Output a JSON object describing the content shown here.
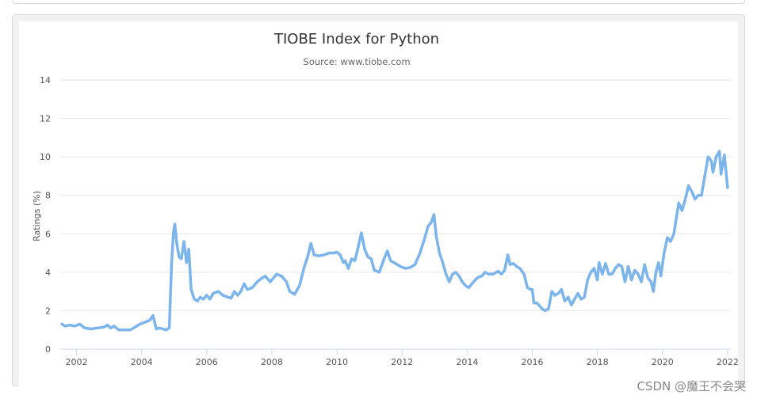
{
  "watermark": "CSDN @魔王不会哭",
  "chart_data": {
    "type": "line",
    "title": "TIOBE Index for Python",
    "subtitle": "Source: www.tiobe.com",
    "xlabel": "",
    "ylabel": "Ratings (%)",
    "xlim": [
      2001.5,
      2022.1
    ],
    "ylim": [
      0,
      14
    ],
    "xticks": [
      "2002",
      "2004",
      "2006",
      "2008",
      "2010",
      "2012",
      "2014",
      "2016",
      "2018",
      "2020",
      "2022"
    ],
    "yticks": [
      "0",
      "2",
      "4",
      "6",
      "8",
      "10",
      "12",
      "14"
    ],
    "grid": true,
    "legend": "none",
    "line_color": "#7cb5ec",
    "series": [
      {
        "points": [
          [
            2001.55,
            1.3
          ],
          [
            2001.65,
            1.2
          ],
          [
            2001.8,
            1.25
          ],
          [
            2001.95,
            1.2
          ],
          [
            2002.1,
            1.3
          ],
          [
            2002.25,
            1.1
          ],
          [
            2002.45,
            1.05
          ],
          [
            2002.65,
            1.1
          ],
          [
            2002.85,
            1.15
          ],
          [
            2002.95,
            1.25
          ],
          [
            2003.05,
            1.1
          ],
          [
            2003.15,
            1.2
          ],
          [
            2003.3,
            1.0
          ],
          [
            2003.5,
            1.0
          ],
          [
            2003.65,
            1.0
          ],
          [
            2003.8,
            1.15
          ],
          [
            2003.95,
            1.3
          ],
          [
            2004.1,
            1.4
          ],
          [
            2004.25,
            1.5
          ],
          [
            2004.35,
            1.75
          ],
          [
            2004.45,
            1.05
          ],
          [
            2004.55,
            1.1
          ],
          [
            2004.65,
            1.05
          ],
          [
            2004.75,
            1.0
          ],
          [
            2004.85,
            1.1
          ],
          [
            2004.92,
            4.5
          ],
          [
            2004.98,
            6.1
          ],
          [
            2005.02,
            6.5
          ],
          [
            2005.08,
            5.5
          ],
          [
            2005.15,
            4.8
          ],
          [
            2005.22,
            4.7
          ],
          [
            2005.3,
            5.6
          ],
          [
            2005.38,
            4.5
          ],
          [
            2005.45,
            5.2
          ],
          [
            2005.52,
            3.1
          ],
          [
            2005.62,
            2.6
          ],
          [
            2005.72,
            2.5
          ],
          [
            2005.8,
            2.7
          ],
          [
            2005.9,
            2.6
          ],
          [
            2006.0,
            2.8
          ],
          [
            2006.1,
            2.6
          ],
          [
            2006.2,
            2.9
          ],
          [
            2006.35,
            3.0
          ],
          [
            2006.5,
            2.8
          ],
          [
            2006.65,
            2.7
          ],
          [
            2006.75,
            2.65
          ],
          [
            2006.85,
            3.0
          ],
          [
            2006.95,
            2.8
          ],
          [
            2007.05,
            3.0
          ],
          [
            2007.15,
            3.4
          ],
          [
            2007.25,
            3.1
          ],
          [
            2007.4,
            3.2
          ],
          [
            2007.55,
            3.5
          ],
          [
            2007.7,
            3.7
          ],
          [
            2007.8,
            3.8
          ],
          [
            2007.95,
            3.5
          ],
          [
            2008.05,
            3.7
          ],
          [
            2008.15,
            3.9
          ],
          [
            2008.3,
            3.8
          ],
          [
            2008.45,
            3.5
          ],
          [
            2008.55,
            3.0
          ],
          [
            2008.7,
            2.85
          ],
          [
            2008.85,
            3.3
          ],
          [
            2009.0,
            4.3
          ],
          [
            2009.1,
            4.8
          ],
          [
            2009.2,
            5.5
          ],
          [
            2009.3,
            4.9
          ],
          [
            2009.45,
            4.85
          ],
          [
            2009.6,
            4.9
          ],
          [
            2009.75,
            5.0
          ],
          [
            2009.9,
            5.0
          ],
          [
            2010.0,
            5.05
          ],
          [
            2010.1,
            4.9
          ],
          [
            2010.2,
            4.5
          ],
          [
            2010.25,
            4.6
          ],
          [
            2010.35,
            4.2
          ],
          [
            2010.45,
            4.7
          ],
          [
            2010.55,
            4.6
          ],
          [
            2010.65,
            5.3
          ],
          [
            2010.75,
            6.05
          ],
          [
            2010.85,
            5.2
          ],
          [
            2010.95,
            4.8
          ],
          [
            2011.05,
            4.7
          ],
          [
            2011.15,
            4.1
          ],
          [
            2011.3,
            4.0
          ],
          [
            2011.45,
            4.7
          ],
          [
            2011.55,
            5.1
          ],
          [
            2011.65,
            4.6
          ],
          [
            2011.8,
            4.45
          ],
          [
            2011.95,
            4.3
          ],
          [
            2012.1,
            4.2
          ],
          [
            2012.25,
            4.25
          ],
          [
            2012.4,
            4.4
          ],
          [
            2012.55,
            5.0
          ],
          [
            2012.7,
            5.8
          ],
          [
            2012.8,
            6.4
          ],
          [
            2012.9,
            6.6
          ],
          [
            2012.98,
            7.0
          ],
          [
            2013.05,
            5.9
          ],
          [
            2013.15,
            5.0
          ],
          [
            2013.25,
            4.5
          ],
          [
            2013.35,
            3.9
          ],
          [
            2013.45,
            3.5
          ],
          [
            2013.55,
            3.9
          ],
          [
            2013.65,
            4.0
          ],
          [
            2013.75,
            3.8
          ],
          [
            2013.85,
            3.5
          ],
          [
            2013.95,
            3.3
          ],
          [
            2014.05,
            3.2
          ],
          [
            2014.15,
            3.4
          ],
          [
            2014.25,
            3.6
          ],
          [
            2014.35,
            3.75
          ],
          [
            2014.45,
            3.8
          ],
          [
            2014.55,
            4.0
          ],
          [
            2014.65,
            3.9
          ],
          [
            2014.8,
            3.9
          ],
          [
            2014.95,
            4.05
          ],
          [
            2015.05,
            3.9
          ],
          [
            2015.15,
            4.1
          ],
          [
            2015.25,
            4.9
          ],
          [
            2015.32,
            4.4
          ],
          [
            2015.42,
            4.45
          ],
          [
            2015.52,
            4.3
          ],
          [
            2015.62,
            4.2
          ],
          [
            2015.75,
            3.9
          ],
          [
            2015.85,
            3.2
          ],
          [
            2015.95,
            3.1
          ],
          [
            2016.0,
            3.1
          ],
          [
            2016.05,
            2.4
          ],
          [
            2016.15,
            2.4
          ],
          [
            2016.3,
            2.1
          ],
          [
            2016.4,
            2.0
          ],
          [
            2016.5,
            2.1
          ],
          [
            2016.6,
            3.0
          ],
          [
            2016.7,
            2.8
          ],
          [
            2016.8,
            2.9
          ],
          [
            2016.9,
            3.1
          ],
          [
            2017.0,
            2.5
          ],
          [
            2017.1,
            2.7
          ],
          [
            2017.2,
            2.3
          ],
          [
            2017.3,
            2.6
          ],
          [
            2017.4,
            2.9
          ],
          [
            2017.5,
            2.6
          ],
          [
            2017.6,
            2.7
          ],
          [
            2017.7,
            3.6
          ],
          [
            2017.8,
            4.0
          ],
          [
            2017.9,
            4.2
          ],
          [
            2018.0,
            3.6
          ],
          [
            2018.05,
            4.5
          ],
          [
            2018.15,
            3.9
          ],
          [
            2018.25,
            4.45
          ],
          [
            2018.35,
            3.9
          ],
          [
            2018.45,
            3.9
          ],
          [
            2018.55,
            4.2
          ],
          [
            2018.65,
            4.4
          ],
          [
            2018.75,
            4.3
          ],
          [
            2018.85,
            3.5
          ],
          [
            2018.95,
            4.3
          ],
          [
            2019.05,
            3.6
          ],
          [
            2019.15,
            4.1
          ],
          [
            2019.25,
            3.9
          ],
          [
            2019.35,
            3.5
          ],
          [
            2019.45,
            4.4
          ],
          [
            2019.55,
            3.7
          ],
          [
            2019.65,
            3.5
          ],
          [
            2019.72,
            3.0
          ],
          [
            2019.8,
            4.0
          ],
          [
            2019.88,
            4.5
          ],
          [
            2019.95,
            3.8
          ],
          [
            2020.05,
            5.0
          ],
          [
            2020.15,
            5.8
          ],
          [
            2020.25,
            5.6
          ],
          [
            2020.35,
            6.0
          ],
          [
            2020.5,
            7.6
          ],
          [
            2020.6,
            7.2
          ],
          [
            2020.7,
            7.8
          ],
          [
            2020.8,
            8.5
          ],
          [
            2020.9,
            8.2
          ],
          [
            2021.0,
            7.8
          ],
          [
            2021.1,
            8.0
          ],
          [
            2021.2,
            8.0
          ],
          [
            2021.3,
            9.0
          ],
          [
            2021.4,
            10.0
          ],
          [
            2021.5,
            9.8
          ],
          [
            2021.55,
            9.2
          ],
          [
            2021.65,
            10.0
          ],
          [
            2021.75,
            10.3
          ],
          [
            2021.8,
            9.1
          ],
          [
            2021.9,
            10.1
          ],
          [
            2022.0,
            8.4
          ]
        ]
      }
    ]
  }
}
